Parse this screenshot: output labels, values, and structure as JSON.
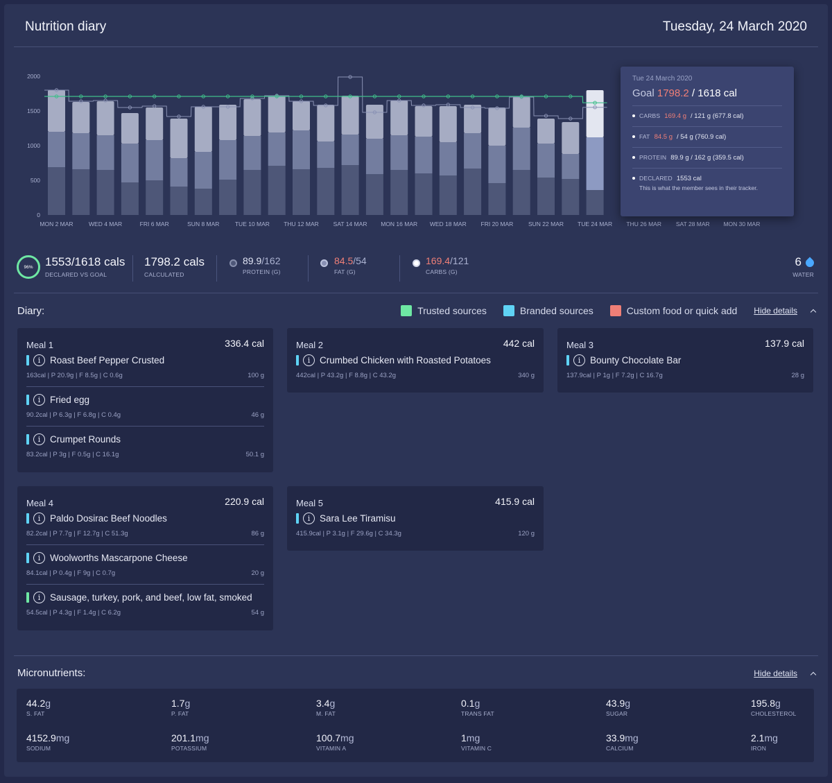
{
  "header": {
    "title": "Nutrition diary",
    "date": "Tuesday, 24 March 2020"
  },
  "chart_data": {
    "type": "bar",
    "stacked": true,
    "ylim": [
      0,
      2000
    ],
    "yticks": [
      0,
      500,
      1000,
      1500,
      2000
    ],
    "x_labels": [
      "MON 2 MAR",
      "WED 4 MAR",
      "FRI 6 MAR",
      "SUN 8 MAR",
      "TUE 10 MAR",
      "THU 12 MAR",
      "SAT 14 MAR",
      "MON 16 MAR",
      "WED 18 MAR",
      "FRI 20 MAR",
      "SUN 22 MAR",
      "TUE 24 MAR",
      "THU 26 MAR",
      "SAT 28 MAR",
      "MON 30 MAR"
    ],
    "days": 23,
    "highlight_index": 22,
    "series": [
      {
        "name": "Protein",
        "values": [
          690,
          660,
          650,
          470,
          500,
          410,
          380,
          510,
          650,
          710,
          660,
          680,
          720,
          590,
          650,
          600,
          570,
          670,
          460,
          650,
          540,
          520,
          360
        ]
      },
      {
        "name": "Fat",
        "values": [
          510,
          520,
          500,
          560,
          580,
          410,
          530,
          570,
          490,
          480,
          560,
          380,
          440,
          510,
          500,
          530,
          480,
          510,
          540,
          610,
          490,
          360,
          760
        ]
      },
      {
        "name": "Carbs",
        "values": [
          600,
          450,
          490,
          440,
          470,
          570,
          650,
          510,
          530,
          530,
          420,
          530,
          560,
          490,
          500,
          440,
          520,
          410,
          550,
          440,
          360,
          460,
          680
        ]
      }
    ],
    "goal_line": [
      1710,
      1710,
      1710,
      1710,
      1710,
      1710,
      1710,
      1710,
      1710,
      1710,
      1710,
      1710,
      1710,
      1710,
      1710,
      1710,
      1710,
      1710,
      1710,
      1710,
      1710,
      1710,
      1618
    ],
    "declared_line": [
      1800,
      1640,
      1650,
      1550,
      1570,
      1420,
      1560,
      1560,
      1680,
      1720,
      1640,
      1580,
      1990,
      1480,
      1650,
      1580,
      1590,
      1550,
      1540,
      1700,
      1430,
      1390,
      1553
    ],
    "colors": {
      "protein": "#4e5778",
      "fat": "#737d9f",
      "carbs": "#a6acc3",
      "highlight_carbs": "#e3e6f0",
      "highlight_fat": "#8d9ac2",
      "line": "#3fbf8a"
    }
  },
  "tooltip": {
    "date": "Tue 24 March 2020",
    "goal_label": "Goal",
    "goal_value": "1798.2",
    "goal_rest": "/ 1618 cal",
    "rows": [
      {
        "key": "CARBS",
        "value": "169.4 g",
        "rest": "/ 121 g (677.8 cal)"
      },
      {
        "key": "FAT",
        "value": "84.5 g",
        "rest": "/ 54 g (760.9 cal)"
      },
      {
        "key": "PROTEIN",
        "value": "89.9 g / 162 g (359.5 cal)"
      },
      {
        "key": "DECLARED",
        "value": "1553 cal"
      }
    ],
    "note": "This is what the member sees in their tracker."
  },
  "summary": {
    "ring_pct": "96%",
    "declared": "1553/1618 cals",
    "declared_label": "DECLARED VS GOAL",
    "calculated": "1798.2 cals",
    "calculated_label": "CALCULATED",
    "protein": {
      "value": "89.9",
      "goal": "/162",
      "label": "PROTEIN (G)"
    },
    "fat": {
      "value": "84.5",
      "goal": "/54",
      "label": "FAT (G)"
    },
    "carbs": {
      "value": "169.4",
      "goal": "/121",
      "label": "CARBS (G)"
    },
    "water": "6",
    "water_label": "WATER"
  },
  "diary": {
    "title": "Diary:",
    "legend": [
      {
        "label": "Trusted sources",
        "color": "#6ee7a3"
      },
      {
        "label": "Branded sources",
        "color": "#5fd3f5"
      },
      {
        "label": "Custom food or quick add",
        "color": "#ef7f77"
      }
    ],
    "hide_label": "Hide details",
    "meals": [
      {
        "name": "Meal 1",
        "cal": "336.4 cal",
        "foods": [
          {
            "name": "Roast Beef Pepper Crusted",
            "macros": "163cal | P 20.9g | F 8.5g | C 0.6g",
            "weight": "100 g",
            "source": "#5fd3f5"
          },
          {
            "name": "Fried egg",
            "macros": "90.2cal | P 6.3g | F 6.8g | C 0.4g",
            "weight": "46 g",
            "source": "#5fd3f5"
          },
          {
            "name": "Crumpet Rounds",
            "macros": "83.2cal | P 3g | F 0.5g | C 16.1g",
            "weight": "50.1 g",
            "source": "#5fd3f5"
          }
        ]
      },
      {
        "name": "Meal 2",
        "cal": "442 cal",
        "foods": [
          {
            "name": "Crumbed Chicken with Roasted Potatoes",
            "macros": "442cal | P 43.2g | F 8.8g | C 43.2g",
            "weight": "340 g",
            "source": "#5fd3f5"
          }
        ]
      },
      {
        "name": "Meal 3",
        "cal": "137.9 cal",
        "foods": [
          {
            "name": "Bounty Chocolate Bar",
            "macros": "137.9cal | P 1g | F 7.2g | C 16.7g",
            "weight": "28 g",
            "source": "#5fd3f5"
          }
        ]
      },
      {
        "name": "Meal 4",
        "cal": "220.9 cal",
        "foods": [
          {
            "name": "Paldo Dosirac Beef Noodles",
            "macros": "82.2cal | P 7.7g | F 12.7g | C 51.3g",
            "weight": "86 g",
            "source": "#5fd3f5"
          },
          {
            "name": "Woolworths Mascarpone Cheese",
            "macros": "84.1cal | P 0.4g | F 9g | C 0.7g",
            "weight": "20 g",
            "source": "#5fd3f5"
          },
          {
            "name": "Sausage, turkey, pork, and beef, low fat, smoked",
            "macros": "54.5cal | P 4.3g | F 1.4g | C 6.2g",
            "weight": "54 g",
            "source": "#6ee7a3"
          }
        ]
      },
      {
        "name": "Meal 5",
        "cal": "415.9 cal",
        "foods": [
          {
            "name": "Sara Lee Tiramisu",
            "macros": "415.9cal | P 3.1g | F 29.6g | C 34.3g",
            "weight": "120 g",
            "source": "#5fd3f5"
          }
        ]
      }
    ]
  },
  "micro": {
    "title": "Micronutrients:",
    "hide_label": "Hide details",
    "items": [
      {
        "value": "44.2",
        "unit": "g",
        "label": "S. FAT"
      },
      {
        "value": "1.7",
        "unit": "g",
        "label": "P. FAT"
      },
      {
        "value": "3.4",
        "unit": "g",
        "label": "M. FAT"
      },
      {
        "value": "0.1",
        "unit": "g",
        "label": "TRANS FAT"
      },
      {
        "value": "43.9",
        "unit": "g",
        "label": "SUGAR"
      },
      {
        "value": "195.8",
        "unit": "g",
        "label": "CHOLESTEROL"
      },
      {
        "value": "4152.9",
        "unit": "mg",
        "label": "SODIUM"
      },
      {
        "value": "201.1",
        "unit": "mg",
        "label": "POTASSIUM"
      },
      {
        "value": "100.7",
        "unit": "mg",
        "label": "VITAMIN A"
      },
      {
        "value": "1",
        "unit": "mg",
        "label": "VITAMIN C"
      },
      {
        "value": "33.9",
        "unit": "mg",
        "label": "CALCIUM"
      },
      {
        "value": "2.1",
        "unit": "mg",
        "label": "IRON"
      }
    ]
  }
}
